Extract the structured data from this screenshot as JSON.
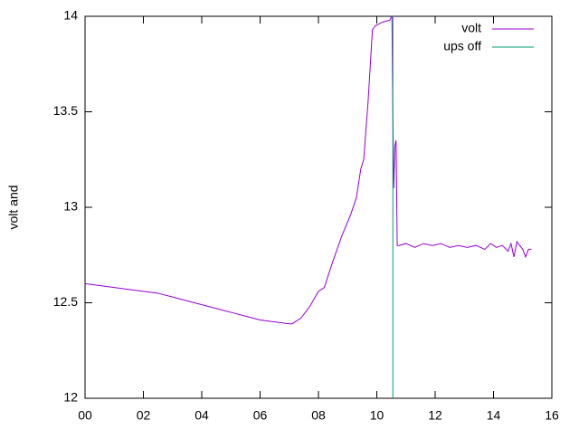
{
  "chart_data": {
    "type": "line",
    "ylabel": "volt and",
    "xlim": [
      0,
      16
    ],
    "xticks": [
      {
        "value": 0,
        "label": "00"
      },
      {
        "value": 2,
        "label": "02"
      },
      {
        "value": 4,
        "label": "04"
      },
      {
        "value": 6,
        "label": "06"
      },
      {
        "value": 8,
        "label": "08"
      },
      {
        "value": 10,
        "label": "10"
      },
      {
        "value": 12,
        "label": "12"
      },
      {
        "value": 14,
        "label": "14"
      },
      {
        "value": 16,
        "label": "16"
      }
    ],
    "ylim": [
      12,
      14
    ],
    "yticks": [
      12,
      12.5,
      13,
      13.5,
      14
    ],
    "grid": false,
    "legend": "top-right",
    "series": [
      {
        "name": "volt",
        "color": "#9400d3",
        "x": [
          0,
          0.5,
          1,
          1.5,
          2,
          2.5,
          3,
          3.5,
          4,
          4.5,
          5,
          5.5,
          6,
          6.5,
          7,
          7.1,
          7.4,
          7.7,
          8,
          8.2,
          8.5,
          8.8,
          9.1,
          9.3,
          9.45,
          9.55,
          9.7,
          9.85,
          9.95,
          10.2,
          10.45,
          10.5,
          10.52,
          10.54,
          10.58,
          10.62,
          10.66,
          10.7,
          10.76,
          11,
          11.3,
          11.6,
          11.9,
          12.2,
          12.5,
          12.8,
          13.1,
          13.4,
          13.7,
          13.9,
          14.1,
          14.3,
          14.5,
          14.6,
          14.7,
          14.8,
          14.9,
          15.0,
          15.1,
          15.2,
          15.3
        ],
        "values": [
          12.6,
          12.59,
          12.58,
          12.57,
          12.56,
          12.55,
          12.53,
          12.51,
          12.49,
          12.47,
          12.45,
          12.43,
          12.41,
          12.4,
          12.39,
          12.39,
          12.42,
          12.48,
          12.56,
          12.58,
          12.72,
          12.85,
          12.96,
          13.05,
          13.2,
          13.25,
          13.55,
          13.93,
          13.95,
          13.97,
          13.98,
          14.0,
          14.0,
          13.64,
          13.1,
          13.32,
          13.35,
          12.8,
          12.8,
          12.81,
          12.79,
          12.81,
          12.8,
          12.81,
          12.79,
          12.8,
          12.79,
          12.8,
          12.78,
          12.81,
          12.79,
          12.8,
          12.77,
          12.81,
          12.74,
          12.82,
          12.8,
          12.78,
          12.74,
          12.78,
          12.78
        ]
      },
      {
        "name": "ups off",
        "color": "#009e73",
        "x": [
          10.55,
          10.55
        ],
        "values": [
          12,
          14
        ]
      }
    ]
  }
}
